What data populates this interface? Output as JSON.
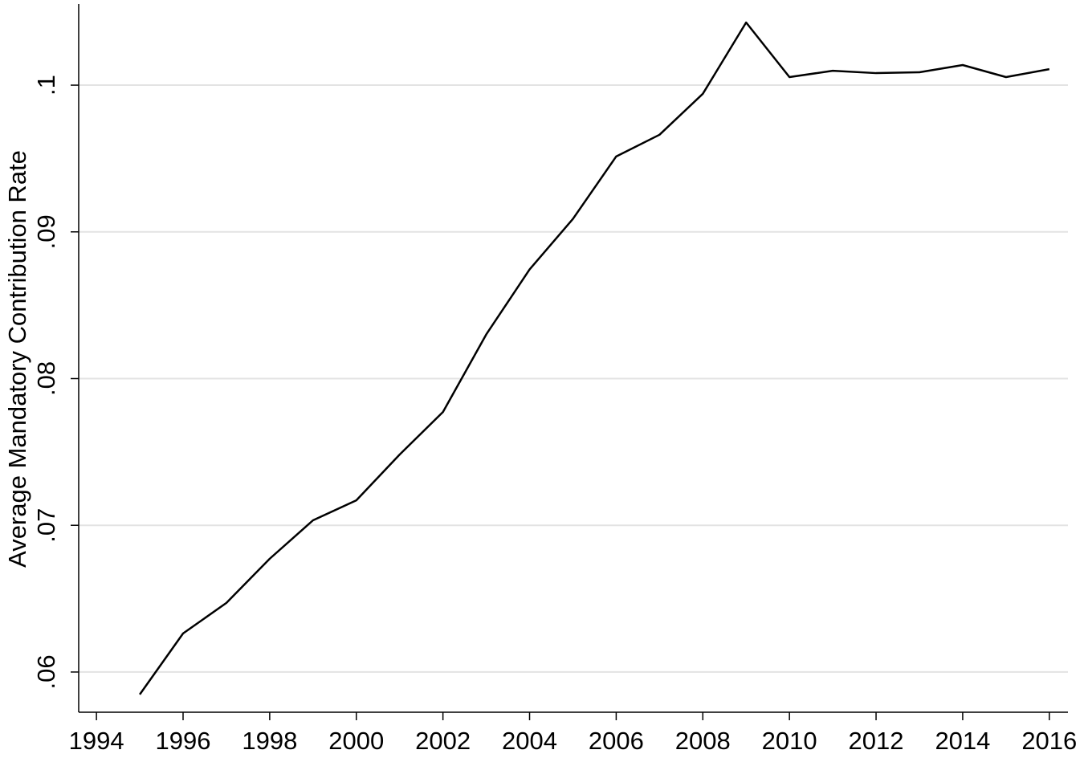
{
  "chart_data": {
    "type": "line",
    "y_label": "Average Mandatory Contribution Rate",
    "x": [
      1995,
      1996,
      1997,
      1998,
      1999,
      2000,
      2001,
      2002,
      2003,
      2004,
      2005,
      2006,
      2007,
      2008,
      2009,
      2010,
      2011,
      2012,
      2013,
      2014,
      2015,
      2016
    ],
    "series": [
      {
        "color": "#000000",
        "values": [
          0.05847,
          0.06263,
          0.06471,
          0.06772,
          0.07034,
          0.0717,
          0.07482,
          0.07772,
          0.08301,
          0.08744,
          0.09088,
          0.09514,
          0.09662,
          0.09941,
          0.10427,
          0.10055,
          0.10098,
          0.10082,
          0.10088,
          0.10137,
          0.10055,
          0.10109
        ]
      }
    ],
    "xlim": [
      1993.59,
      2016.43
    ],
    "xticks": [
      1994,
      1996,
      1998,
      2000,
      2002,
      2004,
      2006,
      2008,
      2010,
      2012,
      2014,
      2016
    ],
    "ylim": [
      0.05726,
      0.10553
    ],
    "yticks": [
      {
        "value": 0.06,
        "label": ".06"
      },
      {
        "value": 0.07,
        "label": ".07"
      },
      {
        "value": 0.08,
        "label": ".08"
      },
      {
        "value": 0.09,
        "label": ".09"
      },
      {
        "value": 0.1,
        "label": ".1"
      }
    ],
    "grid": true
  }
}
